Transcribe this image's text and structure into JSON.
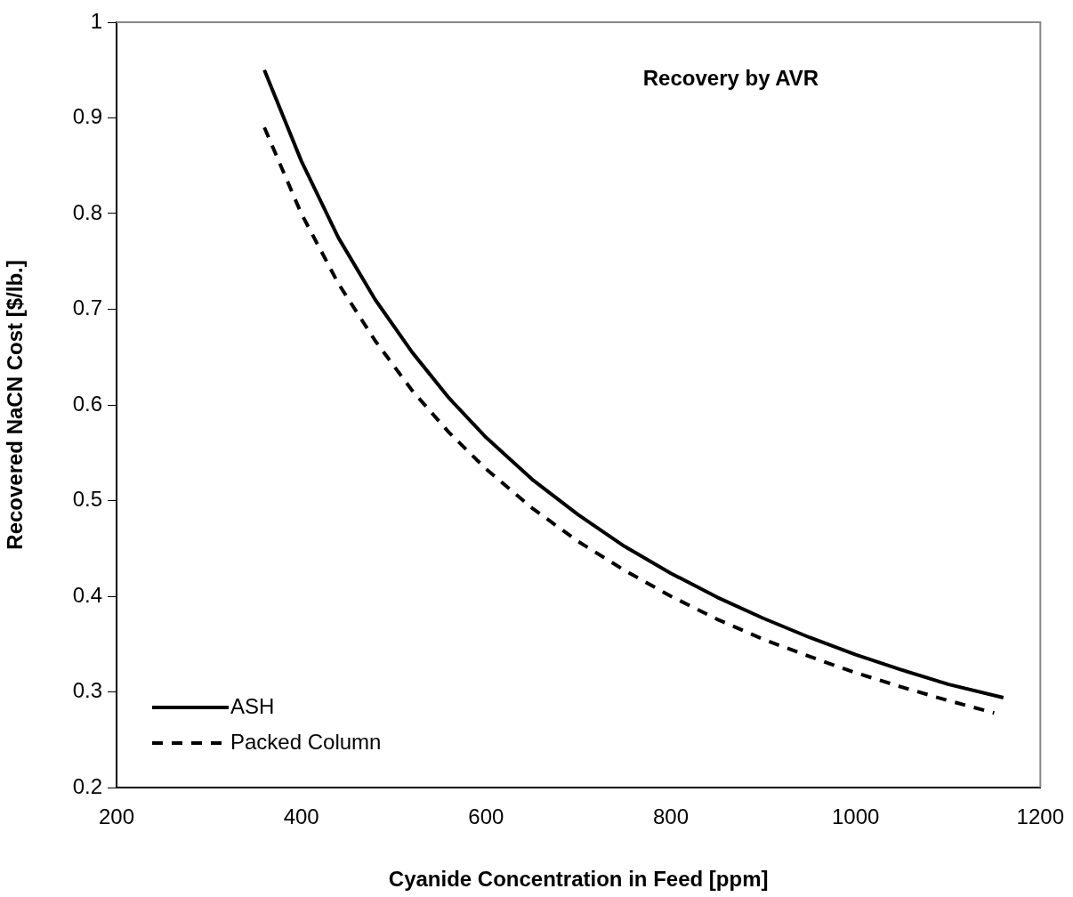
{
  "chart_data": {
    "type": "line",
    "xlabel": "Cyanide Concentration in Feed [ppm]",
    "ylabel": "Recovered NaCN Cost [$/lb.]",
    "annotations": [
      "Recovery by AVR"
    ],
    "xlim": [
      200,
      1200
    ],
    "xticks": [
      200,
      400,
      600,
      800,
      1000,
      1200
    ],
    "ylim": [
      0.2,
      1
    ],
    "yticks": [
      0.2,
      0.3,
      0.4,
      0.5,
      0.6,
      0.7,
      0.8,
      0.9,
      1
    ],
    "grid": false,
    "legend": "bottom left",
    "marker": "none",
    "series": [
      {
        "name": "ASH",
        "color": "#000000",
        "line_style": "solid",
        "x": [
          360,
          400,
          440,
          480,
          520,
          560,
          600,
          650,
          700,
          750,
          800,
          850,
          900,
          950,
          1000,
          1050,
          1100,
          1160
        ],
        "values": [
          0.95,
          0.855,
          0.775,
          0.71,
          0.655,
          0.607,
          0.566,
          0.522,
          0.485,
          0.452,
          0.424,
          0.399,
          0.377,
          0.357,
          0.339,
          0.323,
          0.308,
          0.294
        ]
      },
      {
        "name": "Packed Column",
        "color": "#000000",
        "line_style": "dashed",
        "x": [
          360,
          400,
          440,
          480,
          520,
          560,
          600,
          650,
          700,
          750,
          800,
          850,
          900,
          950,
          1000,
          1050,
          1100,
          1150
        ],
        "values": [
          0.89,
          0.8,
          0.727,
          0.667,
          0.615,
          0.571,
          0.533,
          0.492,
          0.457,
          0.427,
          0.4,
          0.376,
          0.355,
          0.337,
          0.32,
          0.305,
          0.291,
          0.278
        ]
      }
    ]
  }
}
